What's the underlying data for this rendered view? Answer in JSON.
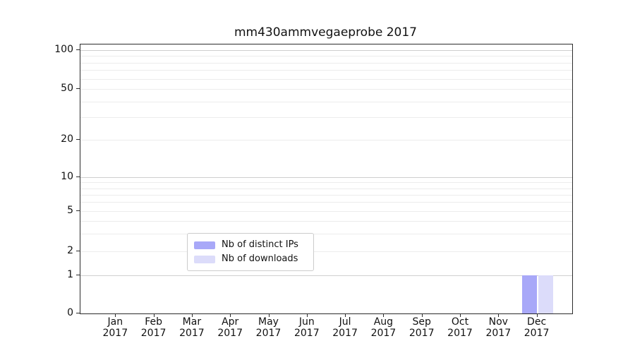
{
  "chart_data": {
    "type": "bar",
    "title": "mm430ammvegaeprobe 2017",
    "x_tick_months": [
      "Jan",
      "Feb",
      "Mar",
      "Apr",
      "May",
      "Jun",
      "Jul",
      "Aug",
      "Sep",
      "Oct",
      "Nov",
      "Dec"
    ],
    "x_tick_year": "2017",
    "y_ticks": [
      0,
      1,
      2,
      5,
      10,
      20,
      50,
      100
    ],
    "y_scale": "log-like (0,1,2,5,10,20,50,100)",
    "ylim": [
      0,
      110
    ],
    "grid": true,
    "legend_position": "lower center inside plot",
    "series": [
      {
        "name": "Nb of distinct IPs",
        "color": "#a8a8f8",
        "values": [
          0,
          0,
          0,
          0,
          0,
          0,
          0,
          0,
          0,
          0,
          0,
          1
        ]
      },
      {
        "name": "Nb of downloads",
        "color": "#dcdcfa",
        "values": [
          0,
          0,
          0,
          0,
          0,
          0,
          0,
          0,
          0,
          0,
          0,
          1
        ]
      }
    ]
  },
  "colors": {
    "grid_minor": "#ececec",
    "grid_major": "#cfcfcf",
    "spine": "#2b2b2b",
    "distinct_ips": "#a8a8f8",
    "downloads": "#dcdcfa"
  }
}
